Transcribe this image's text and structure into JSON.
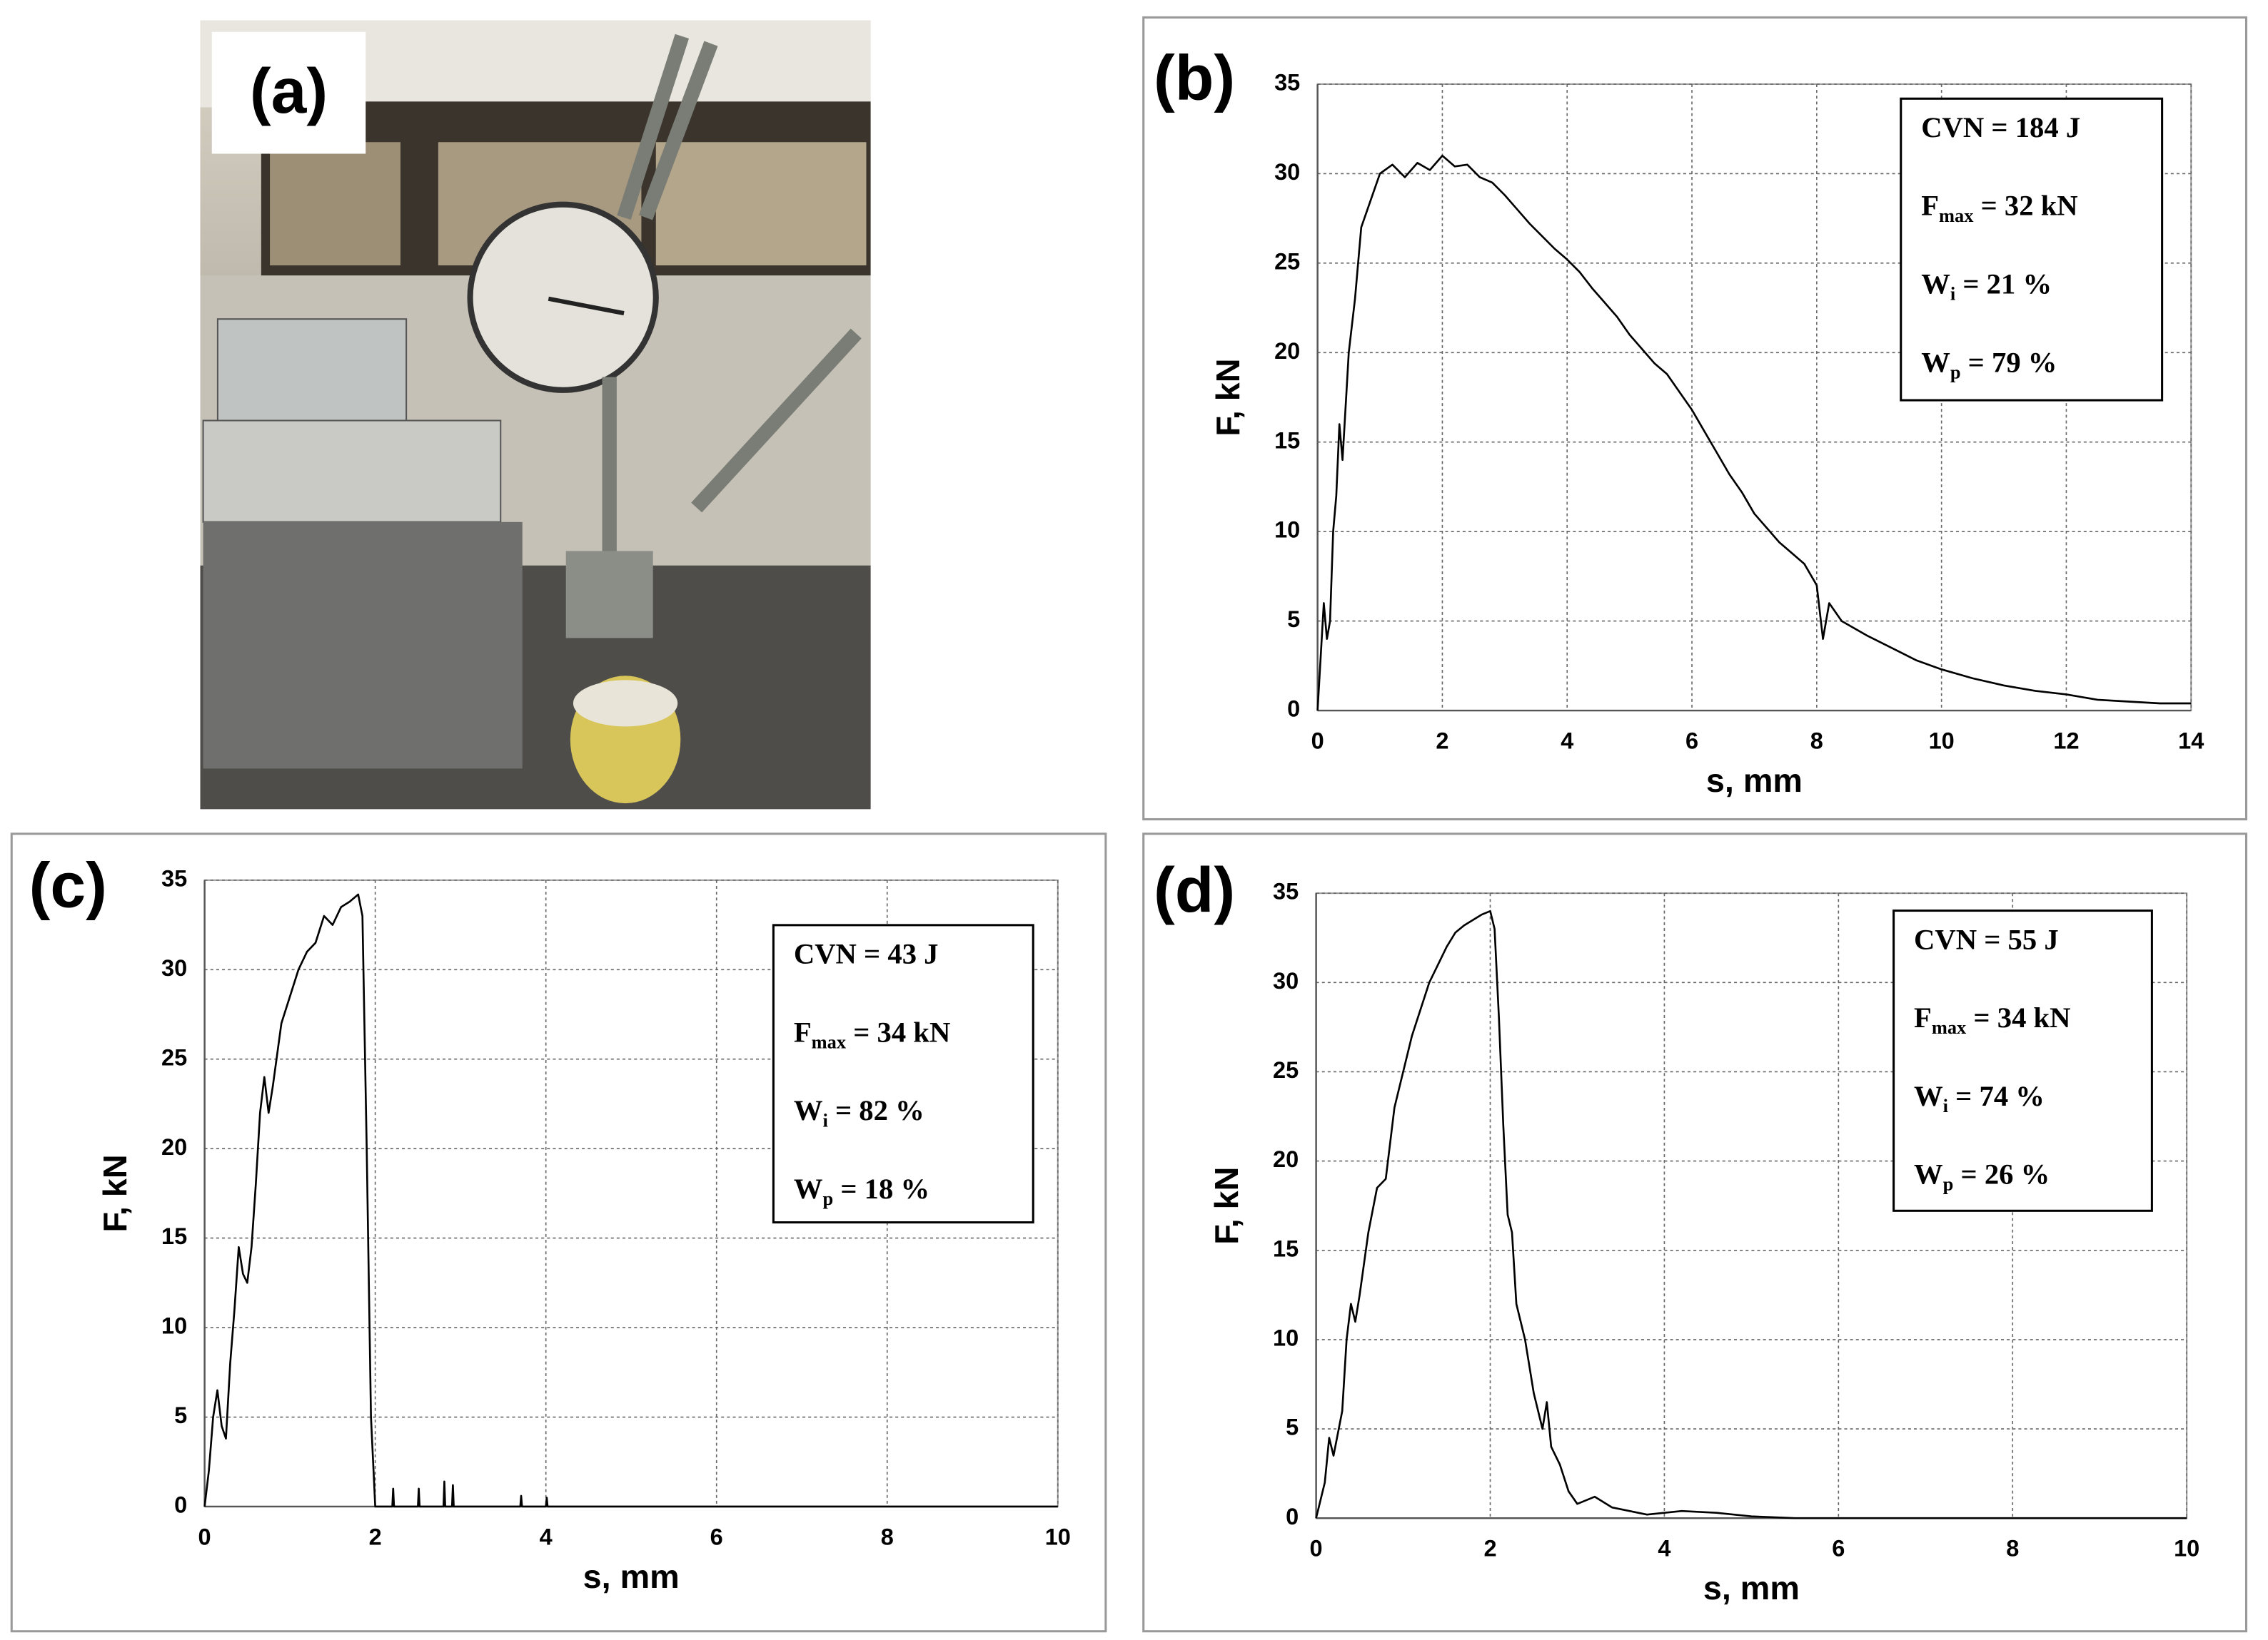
{
  "photo": {
    "label": "(a)"
  },
  "chart_data": [
    {
      "type": "line",
      "panel_label": "(b)",
      "xlabel": "s, mm",
      "ylabel": "F, kN",
      "color": "#000000",
      "grid": true,
      "xlim": [
        0,
        14
      ],
      "xticks": [
        0,
        2,
        4,
        6,
        8,
        10,
        12,
        14
      ],
      "ylim": [
        0,
        35
      ],
      "yticks": [
        0,
        5,
        10,
        15,
        20,
        25,
        30,
        35
      ],
      "annotations": [
        {
          "main": "CVN = 184 J"
        },
        {
          "main": "F",
          "sub": "max",
          "tail": " = 32 kN"
        },
        {
          "main": "W",
          "sub": "i",
          "tail": " = 21 %"
        },
        {
          "main": "W",
          "sub": "p",
          "tail": " = 79 %"
        }
      ],
      "x": [
        0,
        0.05,
        0.1,
        0.15,
        0.2,
        0.25,
        0.3,
        0.35,
        0.4,
        0.45,
        0.5,
        0.6,
        0.7,
        0.8,
        0.9,
        1.0,
        1.2,
        1.4,
        1.6,
        1.8,
        2.0,
        2.2,
        2.4,
        2.6,
        2.8,
        3.0,
        3.2,
        3.4,
        3.6,
        3.8,
        4.0,
        4.2,
        4.4,
        4.6,
        4.8,
        5.0,
        5.2,
        5.4,
        5.6,
        5.8,
        6.0,
        6.2,
        6.4,
        6.6,
        6.8,
        7.0,
        7.2,
        7.4,
        7.6,
        7.8,
        8.0,
        8.1,
        8.2,
        8.4,
        8.8,
        9.2,
        9.6,
        10,
        10.5,
        11,
        11.5,
        12,
        12.5,
        13,
        13.5,
        14
      ],
      "values": [
        0,
        3,
        6,
        4,
        5,
        10,
        12,
        16,
        14,
        17,
        20,
        23,
        27,
        28,
        29,
        30,
        30.5,
        29.8,
        30.6,
        30.2,
        31,
        30.4,
        30.5,
        29.8,
        29.5,
        28.8,
        28,
        27.2,
        26.5,
        25.8,
        25.2,
        24.5,
        23.6,
        22.8,
        22,
        21,
        20.2,
        19.4,
        18.8,
        17.8,
        16.8,
        15.6,
        14.4,
        13.2,
        12.2,
        11,
        10.2,
        9.4,
        8.8,
        8.2,
        7,
        4,
        6,
        5,
        4.2,
        3.5,
        2.8,
        2.3,
        1.8,
        1.4,
        1.1,
        0.9,
        0.6,
        0.5,
        0.4,
        0.4
      ]
    },
    {
      "type": "line",
      "panel_label": "(c)",
      "xlabel": "s, mm",
      "ylabel": "F, kN",
      "color": "#000000",
      "grid": true,
      "xlim": [
        0,
        10
      ],
      "xticks": [
        0,
        2,
        4,
        6,
        8,
        10
      ],
      "ylim": [
        0,
        35
      ],
      "yticks": [
        0,
        5,
        10,
        15,
        20,
        25,
        30,
        35
      ],
      "annotations": [
        {
          "main": "CVN = 43 J"
        },
        {
          "main": "F",
          "sub": "max",
          "tail": " = 34 kN"
        },
        {
          "main": "W",
          "sub": "i",
          "tail": " = 82 %"
        },
        {
          "main": "W",
          "sub": "p",
          "tail": " = 18 %"
        }
      ],
      "x": [
        0,
        0.05,
        0.1,
        0.15,
        0.2,
        0.25,
        0.3,
        0.35,
        0.4,
        0.45,
        0.5,
        0.55,
        0.6,
        0.65,
        0.7,
        0.75,
        0.8,
        0.9,
        1.0,
        1.1,
        1.2,
        1.3,
        1.4,
        1.5,
        1.6,
        1.7,
        1.8,
        1.85,
        1.9,
        1.95,
        2.0,
        2.2,
        2.21,
        2.22,
        2.5,
        2.51,
        2.52,
        2.8,
        2.81,
        2.82,
        2.9,
        2.91,
        2.92,
        3.7,
        3.71,
        3.72,
        4.0,
        4.01,
        4.02,
        10
      ],
      "values": [
        0,
        2,
        5,
        6.5,
        4.5,
        3.8,
        8,
        11,
        14.5,
        13,
        12.5,
        14.5,
        18,
        22,
        24,
        22,
        23.5,
        27,
        28.5,
        30,
        31,
        31.5,
        33,
        32.5,
        33.5,
        33.8,
        34.2,
        33,
        20,
        5,
        0,
        0,
        1,
        0,
        0,
        1,
        0,
        0,
        1.4,
        0,
        0,
        1.2,
        0,
        0,
        0.6,
        0,
        0,
        0.5,
        0,
        0
      ]
    },
    {
      "type": "line",
      "panel_label": "(d)",
      "xlabel": "s, mm",
      "ylabel": "F, kN",
      "color": "#000000",
      "grid": true,
      "xlim": [
        0,
        10
      ],
      "xticks": [
        0,
        2,
        4,
        6,
        8,
        10
      ],
      "ylim": [
        0,
        35
      ],
      "yticks": [
        0,
        5,
        10,
        15,
        20,
        25,
        30,
        35
      ],
      "annotations": [
        {
          "main": "CVN = 55 J"
        },
        {
          "main": "F",
          "sub": "max",
          "tail": " = 34 kN"
        },
        {
          "main": "W",
          "sub": "i",
          "tail": " = 74 %"
        },
        {
          "main": "W",
          "sub": "p",
          "tail": " = 26 %"
        }
      ],
      "x": [
        0,
        0.1,
        0.15,
        0.2,
        0.3,
        0.35,
        0.4,
        0.45,
        0.5,
        0.6,
        0.7,
        0.8,
        0.9,
        1.0,
        1.1,
        1.2,
        1.3,
        1.4,
        1.5,
        1.6,
        1.7,
        1.8,
        1.9,
        2.0,
        2.05,
        2.1,
        2.15,
        2.2,
        2.25,
        2.3,
        2.4,
        2.5,
        2.6,
        2.65,
        2.7,
        2.8,
        2.9,
        3.0,
        3.2,
        3.4,
        3.6,
        3.8,
        4.2,
        4.6,
        5,
        5.5,
        10
      ],
      "values": [
        0,
        2,
        4.5,
        3.5,
        6,
        10,
        12,
        11,
        12.5,
        16,
        18.5,
        19,
        23,
        25,
        27,
        28.5,
        30,
        31,
        32,
        32.8,
        33.2,
        33.5,
        33.8,
        34,
        33,
        28,
        22,
        17,
        16,
        12,
        10,
        7,
        5,
        6.5,
        4,
        3,
        1.5,
        0.8,
        1.2,
        0.6,
        0.4,
        0.2,
        0.4,
        0.3,
        0.1,
        0,
        0
      ]
    }
  ]
}
